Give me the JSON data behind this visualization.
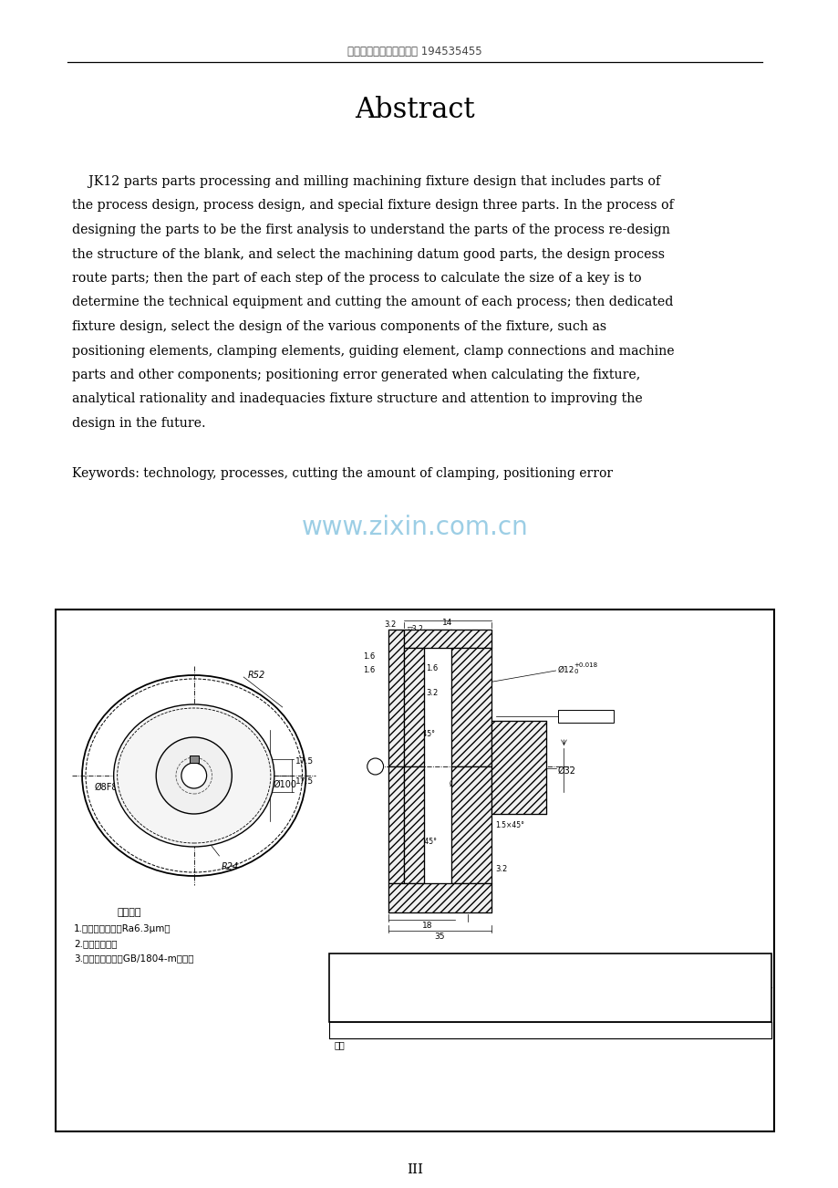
{
  "page_bg": "#ffffff",
  "header_text": "全套设计（图纸）加加加 194535455",
  "title": "Abstract",
  "body_lines": [
    "    JK12 parts parts processing and milling machining fixture design that includes parts of",
    "the process design, process design, and special fixture design three parts. In the process of",
    "designing the parts to be the first analysis to understand the parts of the process re-design",
    "the structure of the blank, and select the machining datum good parts, the design process",
    "route parts; then the part of each step of the process to calculate the size of a key is to",
    "determine the technical equipment and cutting the amount of each process; then dedicated",
    "fixture design, select the design of the various components of the fixture, such as",
    "positioning elements, clamping elements, guiding element, clamp connections and machine",
    "parts and other components; positioning error generated when calculating the fixture,",
    "analytical rationality and inadequacies fixture structure and attention to improving the",
    "design in the future."
  ],
  "keywords_text": "Keywords: technology, processes, cutting the amount of clamping, positioning error",
  "watermark": "www.zixin.com.cn",
  "page_number": "III",
  "text_color": "#000000",
  "watermark_color": "#5baed4",
  "header_color": "#555555"
}
